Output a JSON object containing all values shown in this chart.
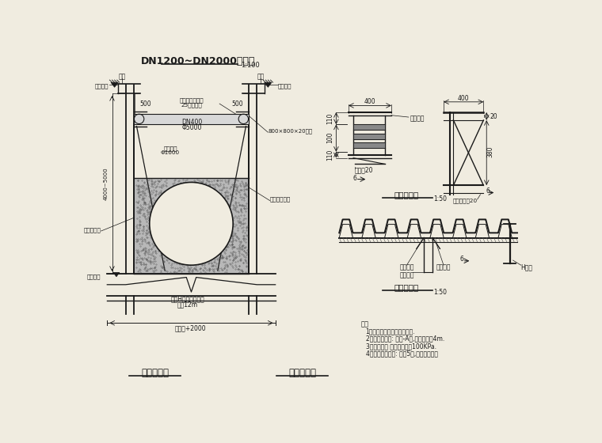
{
  "title": "DN1200~DN2000管支护",
  "title_scale": "1:100",
  "bg_color": "#f0ece0",
  "line_color": "#1a1a1a",
  "notes": [
    "注：",
    "1、本图尺寸单位均以毫米计.",
    "2、设计荷载为: 城市-A级,道路覆土为4m.",
    "3、管底地基 容许承载力为100KPa.",
    "4、管道及结构管: 标准5米,平抵位管方式"
  ],
  "bottom_labels": [
    "管道工程量",
    "支护工程量"
  ],
  "sub_title1": "支座大样图",
  "sub_title2": "节点大样图",
  "sub_scale": "1:50"
}
